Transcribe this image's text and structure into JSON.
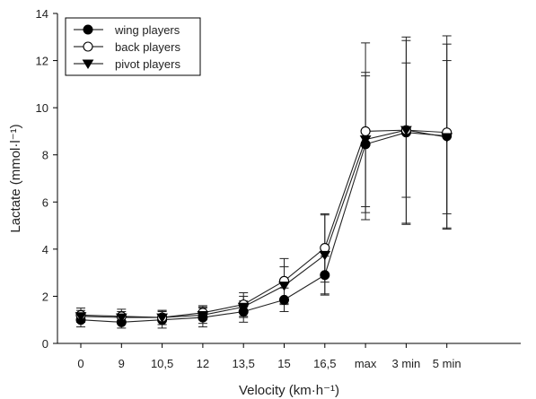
{
  "chart_data": {
    "type": "line",
    "xlabel": "Velocity (km·h⁻¹)",
    "ylabel": "Lactate (mmol·l⁻¹)",
    "ylim": [
      0,
      14
    ],
    "yticks": [
      0,
      2,
      4,
      6,
      8,
      10,
      12,
      14
    ],
    "categories": [
      "0",
      "9",
      "10,5",
      "12",
      "13,5",
      "15",
      "16,5",
      "max",
      "3 min",
      "5 min"
    ],
    "grid": false,
    "legend_position": "top-left",
    "series": [
      {
        "name": "wing players",
        "marker": "filled-circle",
        "values": [
          1.0,
          0.9,
          1.0,
          1.1,
          1.35,
          1.85,
          2.9,
          8.45,
          8.95,
          8.8
        ],
        "error": [
          0.3,
          0.25,
          0.35,
          0.4,
          0.45,
          0.5,
          0.8,
          2.9,
          3.9,
          3.9
        ]
      },
      {
        "name": "back players",
        "marker": "open-circle",
        "values": [
          1.2,
          1.15,
          1.1,
          1.3,
          1.65,
          2.65,
          4.05,
          9.0,
          9.05,
          8.95
        ],
        "error": [
          0.3,
          0.3,
          0.3,
          0.3,
          0.5,
          0.95,
          1.45,
          3.75,
          3.95,
          4.1
        ]
      },
      {
        "name": "pivot players",
        "marker": "down-triangle",
        "values": [
          1.15,
          1.1,
          1.1,
          1.2,
          1.55,
          2.45,
          3.75,
          8.65,
          9.05,
          8.75
        ],
        "error": [
          0.25,
          0.25,
          0.3,
          0.35,
          0.45,
          0.8,
          1.7,
          2.85,
          2.85,
          3.25
        ]
      }
    ]
  }
}
